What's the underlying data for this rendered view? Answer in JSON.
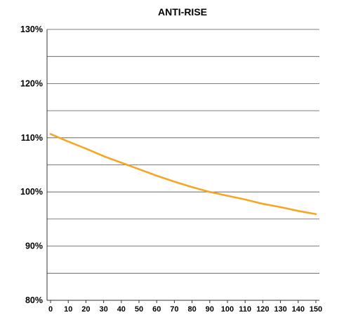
{
  "chart_data": {
    "type": "line",
    "title": "ANTI-RISE",
    "xlabel": "",
    "ylabel": "",
    "x_ticks": [
      "0",
      "10",
      "20",
      "30",
      "40",
      "50",
      "60",
      "70",
      "80",
      "90",
      "100",
      "110",
      "120",
      "130",
      "140",
      "150"
    ],
    "y_ticks": [
      "80%",
      "90%",
      "100%",
      "110%",
      "120%",
      "130%"
    ],
    "xlim": [
      -2,
      152
    ],
    "ylim": [
      80,
      130
    ],
    "grid": true,
    "series": [
      {
        "color": "#f5a623",
        "x": [
          0,
          10,
          20,
          30,
          40,
          50,
          60,
          70,
          80,
          90,
          100,
          110,
          120,
          130,
          140,
          150
        ],
        "y": [
          110.7,
          109.3,
          108.0,
          106.6,
          105.4,
          104.2,
          103.0,
          101.9,
          100.9,
          100.0,
          99.3,
          98.6,
          97.8,
          97.2,
          96.5,
          95.9
        ]
      }
    ]
  }
}
